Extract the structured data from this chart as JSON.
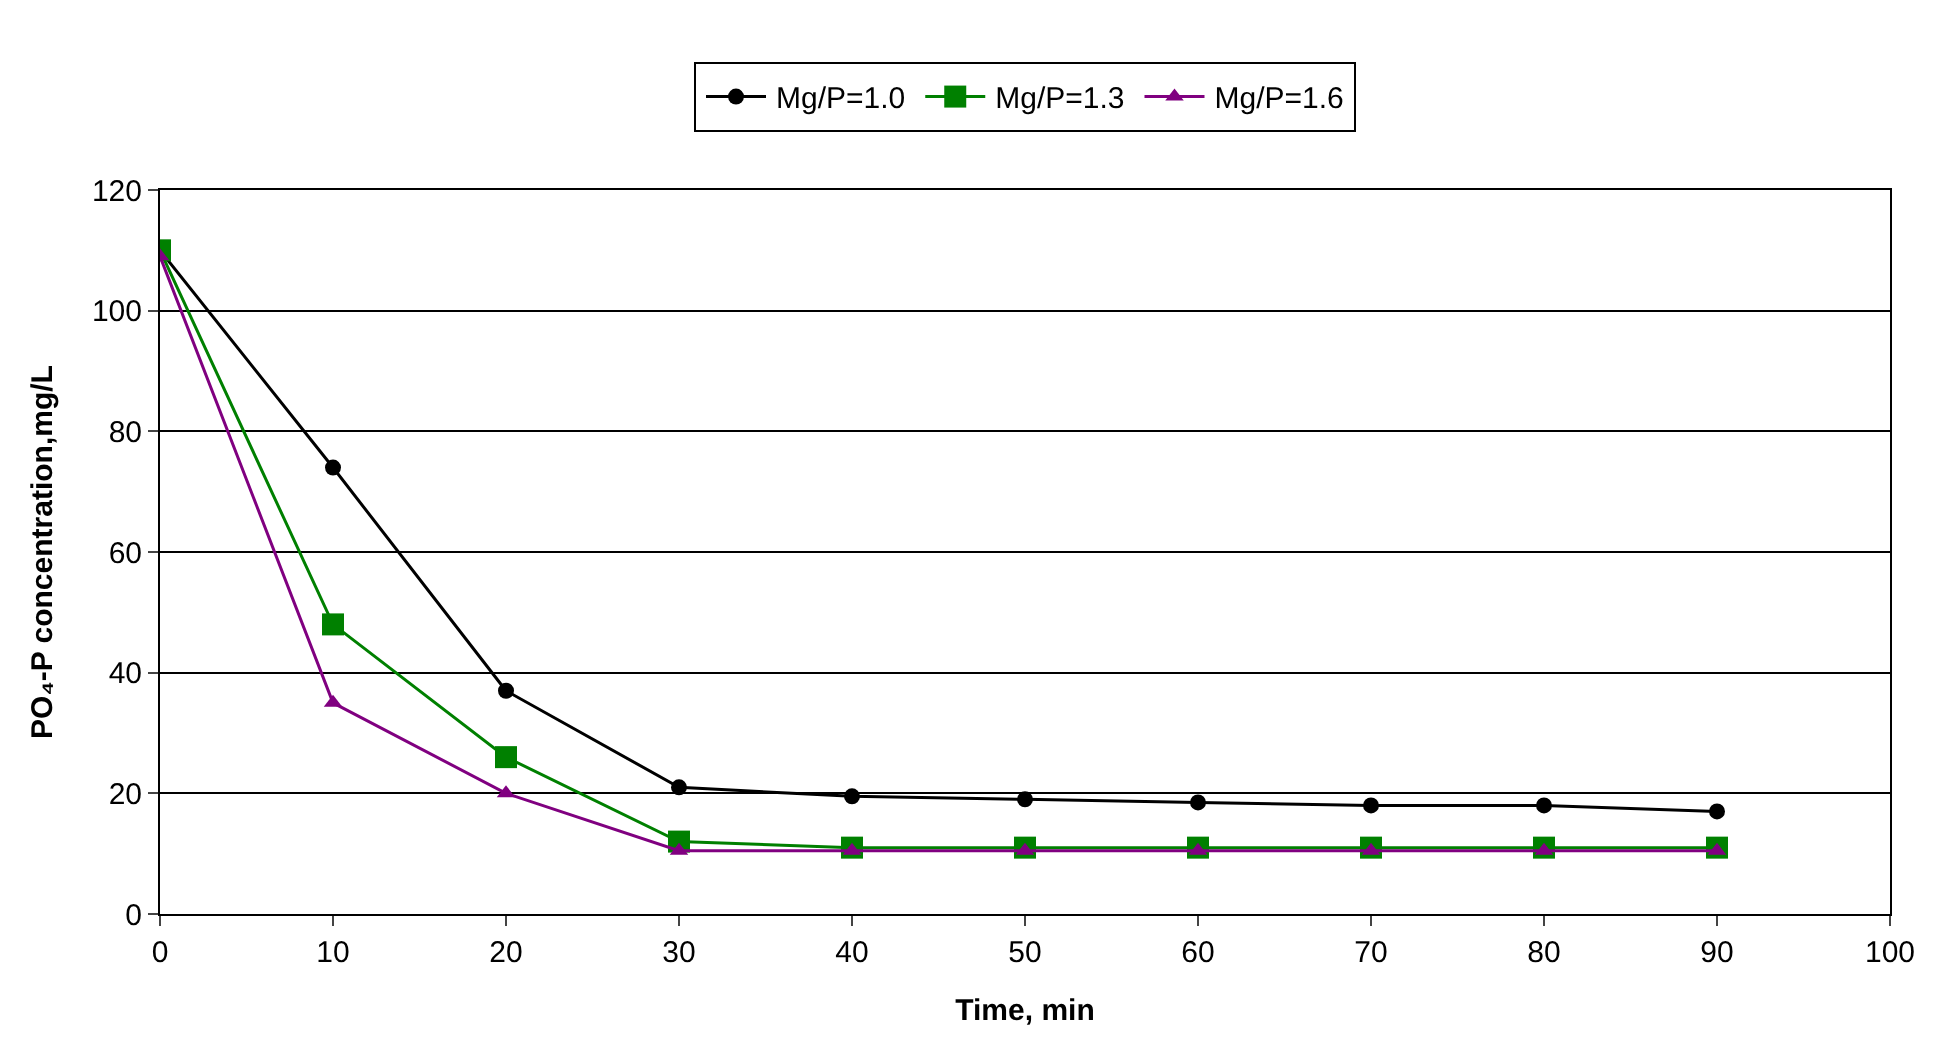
{
  "chart_data": {
    "type": "line",
    "xlabel": "Time, min",
    "ylabel": "PO₄-P concentration,mg/L",
    "x": [
      0,
      10,
      20,
      30,
      40,
      50,
      60,
      70,
      80,
      90
    ],
    "series": [
      {
        "name": "Mg/P=1.0",
        "color": "#000000",
        "values": [
          110,
          74,
          37,
          21,
          19.5,
          19,
          18.5,
          18,
          18,
          17
        ],
        "marker": "circle"
      },
      {
        "name": "Mg/P=1.3",
        "color": "#008000",
        "values": [
          110,
          48,
          26,
          12,
          11,
          11,
          11,
          11,
          11,
          11
        ],
        "marker": "square"
      },
      {
        "name": "Mg/P=1.6",
        "color": "#800080",
        "values": [
          109,
          35,
          20,
          10.5,
          10.5,
          10.5,
          10.5,
          10.5,
          10.5,
          10.5
        ],
        "marker": "triangle"
      }
    ],
    "xlim": [
      0,
      100
    ],
    "xticks": [
      0,
      10,
      20,
      30,
      40,
      50,
      60,
      70,
      80,
      90,
      100
    ],
    "ylim": [
      0,
      120
    ],
    "yticks": [
      0,
      20,
      40,
      60,
      80,
      100,
      120
    ],
    "grid": "y",
    "legend": "top",
    "line_style": "solid"
  }
}
